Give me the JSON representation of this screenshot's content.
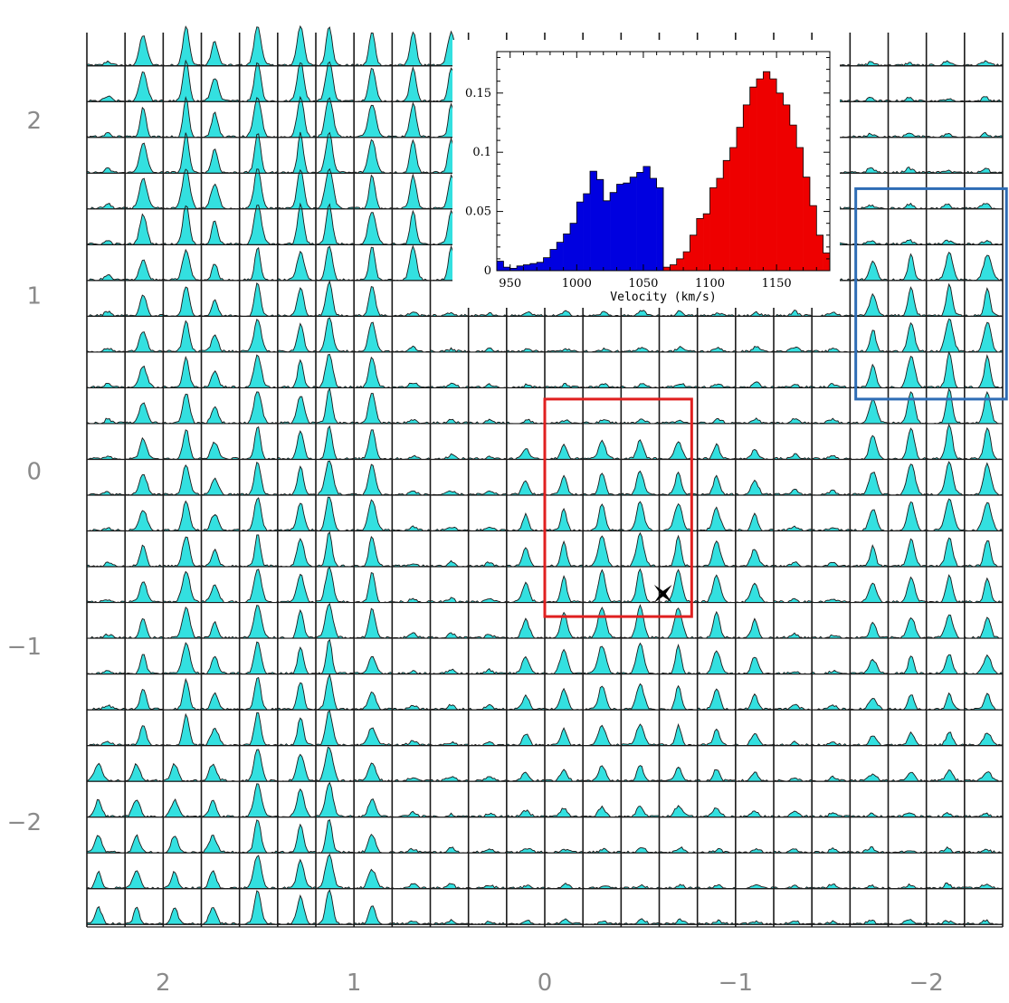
{
  "chart_data": [
    {
      "type": "area",
      "description_kind": "grid of spectra (channel map)",
      "x_axis": {
        "ticks": [
          "2",
          "1",
          "0",
          "−1",
          "−2"
        ],
        "tick_values": [
          2,
          1,
          0,
          -1,
          -2
        ],
        "range": [
          2.4,
          -2.4
        ]
      },
      "y_axis": {
        "ticks": [
          "2",
          "1",
          "0",
          "−1",
          "−2"
        ],
        "tick_values": [
          2,
          1,
          0,
          -1,
          -2
        ],
        "range": [
          -2.6,
          2.5
        ]
      },
      "grid": {
        "columns": 24,
        "rows": 25,
        "cell_size": 0.2
      },
      "spectrum_fill_color": "#33e0e0",
      "spectrum_line_color": "#1a1a1a",
      "regions": [
        {
          "name": "red-box",
          "color": "#e02020",
          "x_range": [
            0.0,
            -0.77
          ],
          "y_range": [
            -0.83,
            0.41
          ]
        },
        {
          "name": "blue-box",
          "color": "#2f6db5",
          "x_range": [
            -1.63,
            -2.42
          ],
          "y_range": [
            0.41,
            1.61
          ]
        }
      ],
      "marker": {
        "type": "star",
        "x": -0.62,
        "y": -0.7,
        "color": "#000000"
      }
    },
    {
      "type": "bar",
      "title": "",
      "xlabel": "Velocity (km/s)",
      "ylabel": "",
      "xlim": [
        940,
        1190
      ],
      "ylim": [
        0,
        0.185
      ],
      "x_ticks": [
        "950",
        "1000",
        "1050",
        "1100",
        "1150"
      ],
      "x_tick_values": [
        950,
        1000,
        1050,
        1100,
        1150
      ],
      "y_ticks": [
        "0",
        "0.05",
        "0.1",
        "0.15"
      ],
      "y_tick_values": [
        0,
        0.05,
        0.1,
        0.15
      ],
      "bin_width": 5,
      "series": [
        {
          "color": "#0000e0",
          "x": [
            940,
            945,
            950,
            955,
            960,
            965,
            970,
            975,
            980,
            985,
            990,
            995,
            1000,
            1005,
            1010,
            1015,
            1020,
            1025,
            1030,
            1035,
            1040,
            1045,
            1050,
            1055,
            1060
          ],
          "values": [
            0.008,
            0.003,
            0.002,
            0.004,
            0.005,
            0.006,
            0.007,
            0.011,
            0.018,
            0.024,
            0.031,
            0.04,
            0.058,
            0.065,
            0.084,
            0.077,
            0.059,
            0.066,
            0.073,
            0.074,
            0.079,
            0.083,
            0.088,
            0.078,
            0.07
          ]
        },
        {
          "color": "#ee0000",
          "x": [
            1065,
            1070,
            1075,
            1080,
            1085,
            1090,
            1095,
            1100,
            1105,
            1110,
            1115,
            1120,
            1125,
            1130,
            1135,
            1140,
            1145,
            1150,
            1155,
            1160,
            1165,
            1170,
            1175,
            1180,
            1185
          ],
          "values": [
            0.003,
            0.005,
            0.01,
            0.016,
            0.03,
            0.044,
            0.048,
            0.07,
            0.078,
            0.093,
            0.104,
            0.121,
            0.14,
            0.155,
            0.162,
            0.168,
            0.162,
            0.15,
            0.14,
            0.123,
            0.104,
            0.079,
            0.055,
            0.03,
            0.015
          ]
        }
      ]
    }
  ]
}
